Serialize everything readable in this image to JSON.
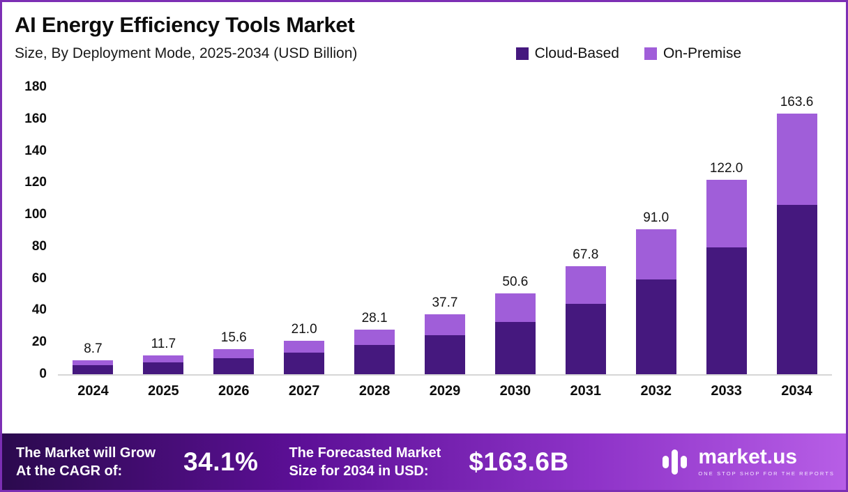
{
  "header": {
    "title": "AI Energy Efficiency Tools Market",
    "subtitle": "Size, By Deployment Mode, 2025-2034 (USD Billion)"
  },
  "legend": [
    {
      "label": "Cloud-Based",
      "color": "#45187E"
    },
    {
      "label": "On-Premise",
      "color": "#A05ED9"
    }
  ],
  "chart_data": {
    "type": "bar",
    "stacked": true,
    "title": "AI Energy Efficiency Tools Market",
    "subtitle": "Size, By Deployment Mode, 2025-2034 (USD Billion)",
    "unit": "USD Billion",
    "categories": [
      "2024",
      "2025",
      "2026",
      "2027",
      "2028",
      "2029",
      "2030",
      "2031",
      "2032",
      "2033",
      "2034"
    ],
    "series": [
      {
        "name": "Cloud-Based",
        "color": "#45187E",
        "values": [
          5.7,
          7.6,
          10.1,
          13.7,
          18.3,
          24.5,
          32.9,
          44.1,
          59.2,
          79.3,
          106.3
        ]
      },
      {
        "name": "On-Premise",
        "color": "#A05ED9",
        "values": [
          3.0,
          4.1,
          5.5,
          7.3,
          9.8,
          13.2,
          17.7,
          23.7,
          31.8,
          42.7,
          57.3
        ]
      }
    ],
    "totals": [
      8.7,
      11.7,
      15.6,
      21.0,
      28.1,
      37.7,
      50.6,
      67.8,
      91.0,
      122.0,
      163.6
    ],
    "totals_labels": [
      "8.7",
      "11.7",
      "15.6",
      "21.0",
      "28.1",
      "37.7",
      "50.6",
      "67.8",
      "91.0",
      "122.0",
      "163.6"
    ],
    "ylim": [
      0,
      180
    ],
    "ytick_step": 20,
    "grid": false,
    "legend_position": "top-right"
  },
  "footer": {
    "cagr_label": "The Market will Grow\nAt the CAGR of:",
    "cagr_value": "34.1%",
    "forecast_label": "The Forecasted Market\nSize for 2034 in USD:",
    "forecast_value": "$163.6B",
    "brand_name": "market.us",
    "brand_tagline": "ONE STOP SHOP FOR THE REPORTS"
  },
  "colors": {
    "border": "#7C2FB4",
    "cloud": "#45187E",
    "onprem": "#A05ED9",
    "footer_gradient_start": "#2B0A4E",
    "footer_gradient_end": "#B75EE6"
  }
}
